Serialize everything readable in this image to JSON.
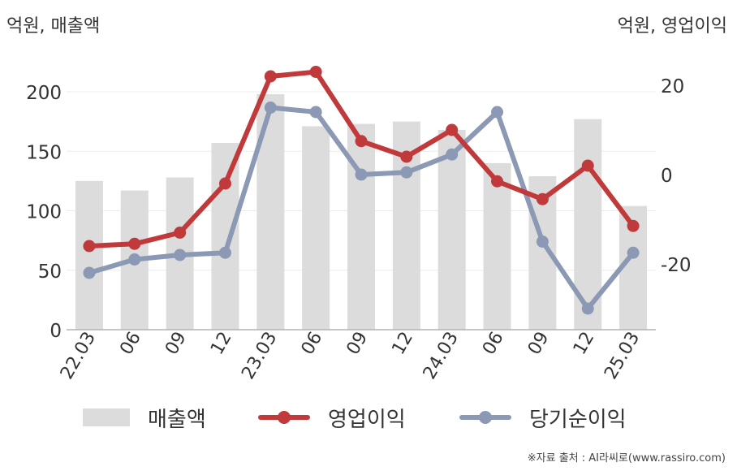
{
  "units": {
    "left": "억원, 매출액",
    "right": "억원, 영업이익"
  },
  "source": "※자료 출처 : AI라씨로(www.rassiro.com)",
  "legend": [
    {
      "label": "매출액",
      "kind": "bar",
      "color": "#dcdcdc"
    },
    {
      "label": "영업이익",
      "kind": "line",
      "color": "#c0393b"
    },
    {
      "label": "당기순이익",
      "kind": "line",
      "color": "#8c99b5"
    }
  ],
  "chart_data": {
    "type": "bar",
    "categories": [
      "22.03",
      "06",
      "09",
      "12",
      "23.03",
      "06",
      "09",
      "12",
      "24.03",
      "06",
      "09",
      "12",
      "25.03"
    ],
    "left_axis": {
      "ylim": [
        0,
        200
      ],
      "ticks": [
        "0",
        "50",
        "100",
        "150",
        "200"
      ]
    },
    "right_axis": {
      "ylim": [
        -35,
        25
      ],
      "ticks": [
        "-20",
        "0",
        "20"
      ]
    },
    "grid": true,
    "legend_position": "bottom",
    "series": [
      {
        "name": "매출액",
        "type": "bar",
        "axis": "left",
        "color": "#dcdcdc",
        "values": [
          125,
          117,
          128,
          157,
          198,
          171,
          173,
          175,
          168,
          140,
          129,
          177,
          104
        ]
      },
      {
        "name": "영업이익",
        "type": "line",
        "axis": "right",
        "color": "#c0393b",
        "values": [
          -16,
          -15.5,
          -13,
          -2,
          22,
          23,
          7.5,
          4,
          10,
          -1.5,
          -5.5,
          2,
          -11.5
        ]
      },
      {
        "name": "당기순이익",
        "type": "line",
        "axis": "right",
        "color": "#8c99b5",
        "values": [
          -22,
          -19,
          -18,
          -17.5,
          15,
          14,
          0,
          0.5,
          4.5,
          14,
          -15,
          -30,
          -17.5
        ]
      }
    ]
  }
}
